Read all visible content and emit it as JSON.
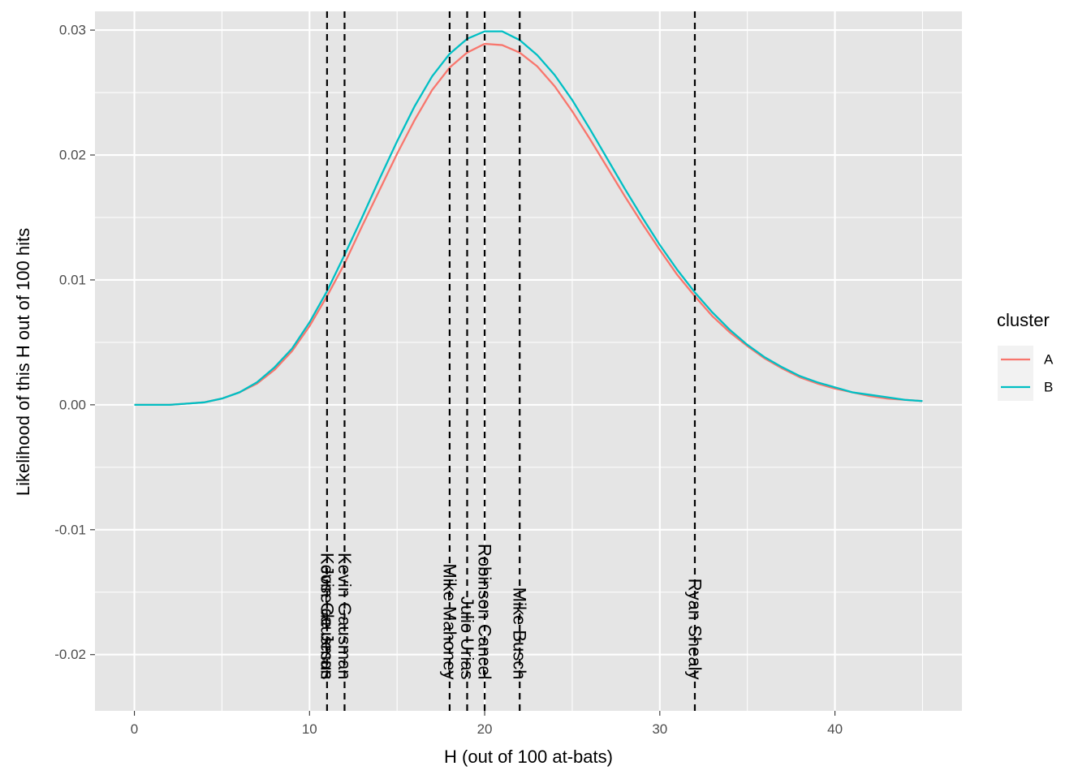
{
  "chart_data": {
    "type": "line",
    "title": "",
    "xlabel": "H (out of 100 at-bats)",
    "ylabel": "Likelihood of this H out of 100 hits",
    "xlim": [
      -2.25,
      47.25
    ],
    "ylim": [
      -0.0245,
      0.0315
    ],
    "x_ticks": [
      0,
      10,
      20,
      30,
      40
    ],
    "y_ticks": [
      -0.02,
      -0.01,
      0.0,
      0.01,
      0.02,
      0.03
    ],
    "y_tick_labels": [
      "-0.02",
      "-0.01",
      "0.00",
      "0.01",
      "0.02",
      "0.03"
    ],
    "x": [
      0,
      1,
      2,
      3,
      4,
      5,
      6,
      7,
      8,
      9,
      10,
      11,
      12,
      13,
      14,
      15,
      16,
      17,
      18,
      19,
      20,
      21,
      22,
      23,
      24,
      25,
      26,
      27,
      28,
      29,
      30,
      31,
      32,
      33,
      34,
      35,
      36,
      37,
      38,
      39,
      40,
      41,
      42,
      43,
      44,
      45
    ],
    "series": [
      {
        "name": "A",
        "color": "#F8766D",
        "values": [
          0.0,
          0.0,
          0.0,
          0.0001,
          0.0002,
          0.0005,
          0.001,
          0.0017,
          0.0028,
          0.0043,
          0.0063,
          0.0087,
          0.0113,
          0.0143,
          0.0172,
          0.0201,
          0.0228,
          0.0252,
          0.027,
          0.0282,
          0.0289,
          0.0288,
          0.0282,
          0.0271,
          0.0255,
          0.0235,
          0.0213,
          0.019,
          0.0167,
          0.0145,
          0.0124,
          0.0104,
          0.0087,
          0.0071,
          0.0058,
          0.0047,
          0.0037,
          0.0029,
          0.0022,
          0.0017,
          0.0013,
          0.001,
          0.0007,
          0.0005,
          0.0004,
          0.0003
        ]
      },
      {
        "name": "B",
        "color": "#00BFC4",
        "values": [
          0.0,
          0.0,
          0.0,
          0.0001,
          0.0002,
          0.0005,
          0.001,
          0.0018,
          0.003,
          0.0045,
          0.0066,
          0.0091,
          0.012,
          0.015,
          0.0181,
          0.0211,
          0.0239,
          0.0263,
          0.0281,
          0.0293,
          0.0299,
          0.0299,
          0.0292,
          0.028,
          0.0264,
          0.0244,
          0.0221,
          0.0197,
          0.0173,
          0.015,
          0.0128,
          0.0108,
          0.009,
          0.0074,
          0.006,
          0.0048,
          0.0038,
          0.003,
          0.0023,
          0.0018,
          0.0014,
          0.001,
          0.0008,
          0.0006,
          0.0004,
          0.0003
        ]
      }
    ],
    "vlines": [
      {
        "x": 11,
        "label": "Kevin Gausman"
      },
      {
        "x": 11,
        "label": "Jose de Jesus"
      },
      {
        "x": 12,
        "label": "Kevin Gausman"
      },
      {
        "x": 18,
        "label": "Mike Mahoney"
      },
      {
        "x": 19,
        "label": "Julio Urias"
      },
      {
        "x": 20,
        "label": "Robinson Cancel"
      },
      {
        "x": 22,
        "label": "Mike Busch"
      },
      {
        "x": 32,
        "label": "Ryan Shealy"
      }
    ],
    "legend": {
      "title": "cluster",
      "position": "right",
      "entries": [
        "A",
        "B"
      ]
    },
    "grid": true,
    "background": "#E5E5E5"
  }
}
